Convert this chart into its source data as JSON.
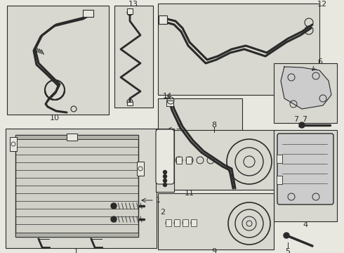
{
  "bg_color": "#e8e8e0",
  "box_color": "#e8e8e0",
  "line_color": "#2a2a2a",
  "inner_bg": "#d8d8d0"
}
